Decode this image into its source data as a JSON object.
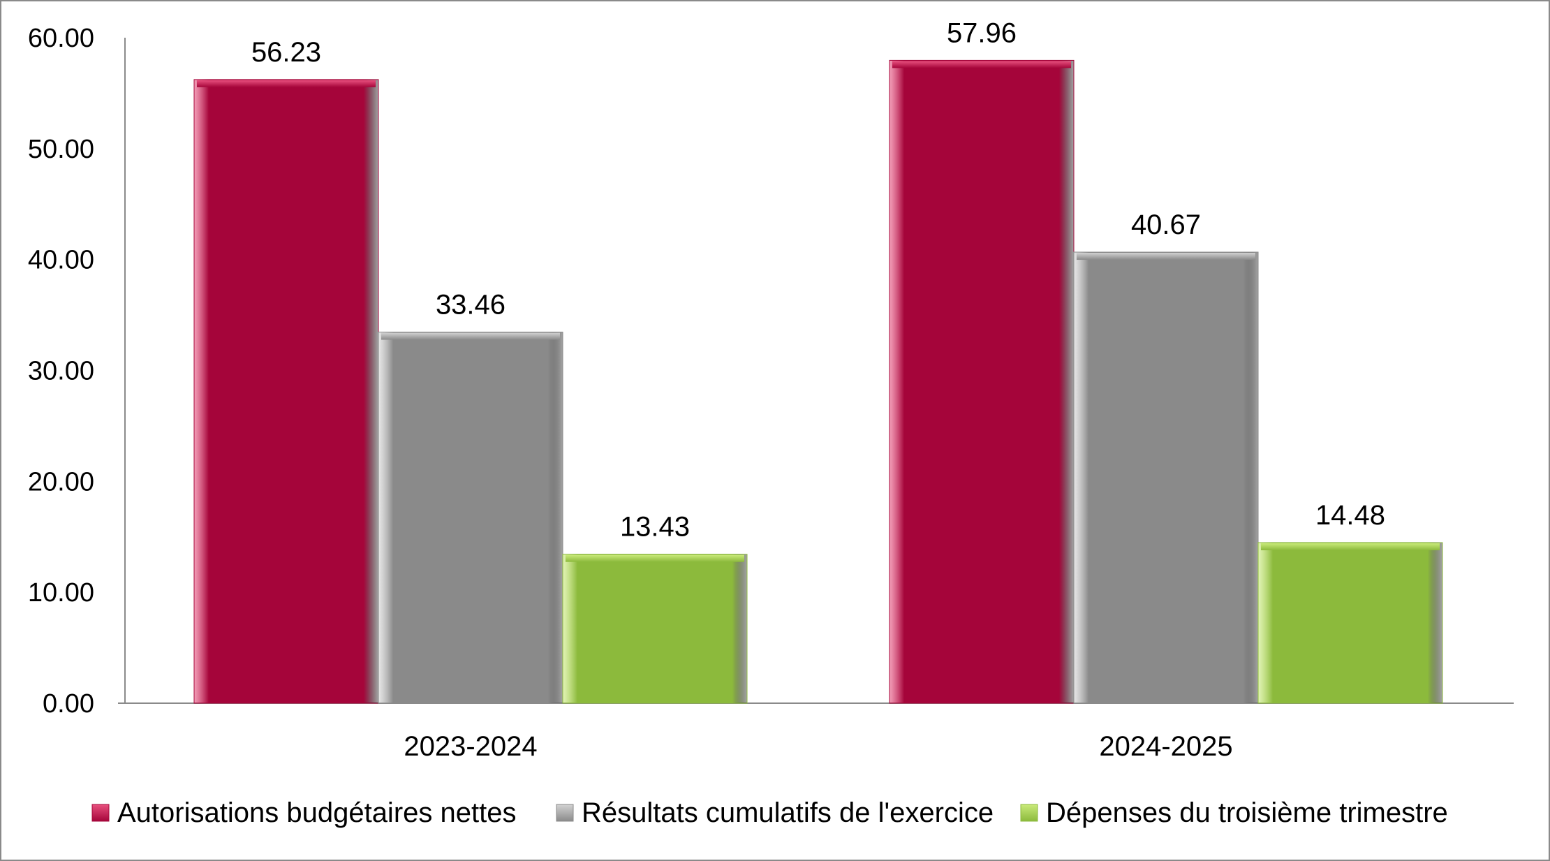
{
  "chart_data": {
    "type": "bar",
    "categories": [
      "2023-2024",
      "2024-2025"
    ],
    "series": [
      {
        "name": "Autorisations budgétaires nettes",
        "values": [
          56.23,
          57.96
        ],
        "labels": [
          "56.23",
          "57.96"
        ],
        "color": "#a5053a",
        "color_top": "#e8507e"
      },
      {
        "name": "Résultats cumulatifs de l'exercice",
        "values": [
          33.46,
          40.67
        ],
        "labels": [
          "33.46",
          "40.67"
        ],
        "color": "#8a8a8a",
        "color_top": "#d2d2d2"
      },
      {
        "name": "Dépenses du troisième trimestre",
        "values": [
          13.43,
          14.48
        ],
        "labels": [
          "13.43",
          "14.48"
        ],
        "color": "#8cba3c",
        "color_top": "#c9ea7a"
      }
    ],
    "ylim": [
      0,
      60
    ],
    "yticks": [
      "0.00",
      "10.00",
      "20.00",
      "30.00",
      "40.00",
      "50.00",
      "60.00"
    ],
    "grid": false,
    "legend_position": "bottom"
  }
}
